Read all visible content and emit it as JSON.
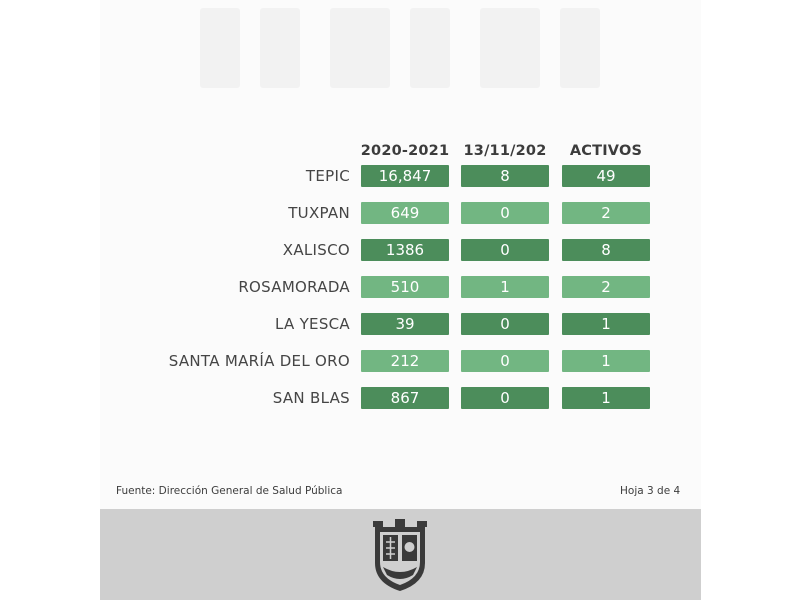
{
  "table": {
    "headers": [
      "2020-2021",
      "13/11/202",
      "ACTIVOS"
    ],
    "rows": [
      {
        "municipality": "TEPIC",
        "v1": "16,847",
        "v2": "8",
        "v3": "49"
      },
      {
        "municipality": "TUXPAN",
        "v1": "649",
        "v2": "0",
        "v3": "2"
      },
      {
        "municipality": "XALISCO",
        "v1": "1386",
        "v2": "0",
        "v3": "8"
      },
      {
        "municipality": "ROSAMORADA",
        "v1": "510",
        "v2": "1",
        "v3": "2"
      },
      {
        "municipality": "LA YESCA",
        "v1": "39",
        "v2": "0",
        "v3": "1"
      },
      {
        "municipality": "SANTA MARÍA DEL ORO",
        "v1": "212",
        "v2": "0",
        "v3": "1"
      },
      {
        "municipality": "SAN BLAS",
        "v1": "867",
        "v2": "0",
        "v3": "1"
      }
    ]
  },
  "footer": {
    "source": "Fuente: Dirección General de Salud Pública",
    "page": "Hoja 3 de 4"
  },
  "colors": {
    "cell_dark": "#4c8d5b",
    "cell_light": "#72b682",
    "band": "#cfcfcf",
    "crest": "#3a3a3a"
  },
  "icons": {
    "crest": "state-coat-of-arms-icon"
  }
}
